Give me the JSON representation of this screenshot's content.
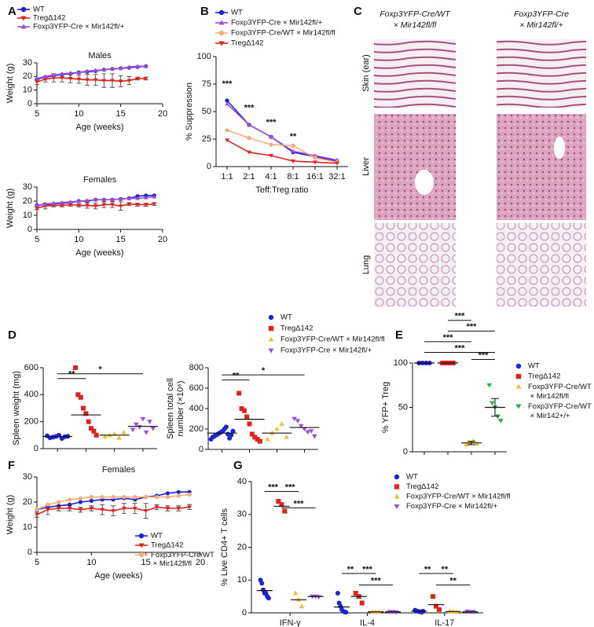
{
  "panels": [
    "A",
    "B",
    "C",
    "D",
    "E",
    "F",
    "G"
  ],
  "panel_c": {
    "columns": [
      [
        "Foxp3YFP-Cre/WT",
        "× Mir142fl/fl"
      ],
      [
        "Foxp3YFP-Cre",
        "× Mir142fl/+"
      ]
    ],
    "rows": [
      "Skin (ear)",
      "Liver",
      "Lung"
    ]
  },
  "chart_data": [
    {
      "type": "line",
      "title": "Males",
      "xlabel": "Age (weeks)",
      "ylabel": "Weight (g)",
      "x": [
        5,
        6,
        7,
        8,
        9,
        10,
        11,
        12,
        13,
        14,
        15,
        16,
        17,
        18
      ],
      "xlim": [
        5,
        20
      ],
      "xticks": [
        5,
        10,
        15,
        20
      ],
      "ylim": [
        0,
        30
      ],
      "yticks": [
        0,
        10,
        20,
        30
      ],
      "series": [
        {
          "name": "WT",
          "color": "#1c22d6",
          "marker": "circle",
          "values": [
            18,
            19.5,
            20.5,
            21.5,
            22,
            23,
            23.5,
            24,
            25,
            25.5,
            26,
            26.5,
            27,
            27.5
          ]
        },
        {
          "name": "TregΔ142",
          "color": "#e3211c",
          "marker": "triangle-down",
          "values": [
            16,
            18,
            19,
            19,
            18.5,
            18,
            17.5,
            17.5,
            17,
            17,
            16.5,
            17,
            18.5,
            18.5
          ],
          "errors": [
            2,
            2,
            3,
            3,
            3,
            3,
            4,
            4,
            5,
            5,
            4,
            3,
            1,
            1
          ]
        },
        {
          "name": "Foxp3YFP-Cre × Mir142fl/+",
          "color": "#9b4fd8",
          "marker": "triangle",
          "values": [
            18.5,
            20,
            21,
            22,
            22.5,
            23,
            24,
            24.5,
            25,
            25.5,
            26,
            27,
            27.5,
            27.5
          ]
        }
      ]
    },
    {
      "type": "line",
      "title": "Females",
      "xlabel": "Age (weeks)",
      "ylabel": "Weight (g)",
      "x": [
        5,
        6,
        7,
        8,
        9,
        10,
        11,
        12,
        13,
        14,
        15,
        16,
        17,
        18,
        19
      ],
      "xlim": [
        5,
        20
      ],
      "xticks": [
        5,
        10,
        15,
        20
      ],
      "ylim": [
        0,
        30
      ],
      "yticks": [
        0,
        10,
        20,
        30
      ],
      "series": [
        {
          "color": "#1c22d6",
          "marker": "circle",
          "values": [
            17,
            17.5,
            18,
            18.5,
            19,
            20,
            20,
            21,
            21,
            21,
            21.5,
            22,
            23.5,
            24,
            24
          ]
        },
        {
          "color": "#e3211c",
          "marker": "triangle-down",
          "values": [
            15,
            16.5,
            17,
            17,
            17.5,
            17,
            17,
            16.5,
            17.5,
            17.5,
            16.5,
            18,
            17.5,
            17.5,
            18
          ],
          "errors": [
            1,
            2,
            1,
            1,
            1,
            1,
            2,
            2,
            2,
            2,
            3,
            1,
            1,
            1,
            1
          ]
        },
        {
          "color": "#9b4fd8",
          "marker": "triangle",
          "values": [
            17,
            18,
            18.5,
            19,
            19.5,
            20,
            20.5,
            21,
            21,
            21,
            21.5,
            22,
            22,
            22.5,
            23
          ]
        }
      ]
    },
    {
      "type": "line",
      "xlabel": "Teff:Treg ratio",
      "ylabel": "% Suppression",
      "categories": [
        "1:1",
        "2:1",
        "4:1",
        "8:1",
        "16:1",
        "32:1"
      ],
      "ylim": [
        0,
        100
      ],
      "yticks": [
        0,
        25,
        50,
        75,
        100
      ],
      "series": [
        {
          "name": "WT",
          "color": "#1c22d6",
          "marker": "circle",
          "values": [
            60,
            38,
            27,
            13,
            9,
            5
          ]
        },
        {
          "name": "Foxp3YFP-Cre × Mir142fl/+",
          "color": "#9b4fd8",
          "marker": "triangle",
          "values": [
            57,
            38,
            27,
            14,
            10,
            6
          ]
        },
        {
          "name": "Foxp3YFP-Cre/WT × Mir142fl/fl",
          "color": "#f3ad7a",
          "marker": "circle",
          "values": [
            33,
            26,
            20,
            19,
            8,
            4
          ]
        },
        {
          "name": "TregΔ142",
          "color": "#e3211c",
          "marker": "triangle-down",
          "values": [
            24,
            13,
            10,
            5,
            4,
            3
          ]
        }
      ],
      "annotations": [
        {
          "text": "***",
          "x": 0,
          "y": 75
        },
        {
          "text": "***",
          "x": 1,
          "y": 53
        },
        {
          "text": "***",
          "x": 2,
          "y": 40
        },
        {
          "text": "**",
          "x": 3,
          "y": 27
        }
      ]
    },
    {
      "type": "dot",
      "ylabel": "Spleen weight (mg)",
      "ylim": [
        0,
        600
      ],
      "yticks": [
        0,
        200,
        400,
        600
      ],
      "series": [
        {
          "name": "WT",
          "color": "#1c22d6",
          "marker": "circle",
          "values": [
            95,
            80,
            85,
            90,
            100,
            75,
            88,
            92
          ],
          "mean": 90
        },
        {
          "name": "TregΔ142",
          "color": "#e3211c",
          "marker": "square",
          "values": [
            600,
            400,
            380,
            300,
            260,
            200,
            150,
            130,
            100
          ],
          "mean": 250
        },
        {
          "name": "Foxp3YFP-Cre/WT × Mir142fl/fl",
          "color": "#efc12f",
          "marker": "triangle",
          "values": [
            90,
            100,
            110,
            80,
            120
          ],
          "mean": 100
        },
        {
          "name": "Foxp3YFP-Cre × Mir142fl/+",
          "color": "#9b4fd8",
          "marker": "triangle-down",
          "values": [
            140,
            180,
            160,
            220,
            120,
            200,
            150
          ],
          "mean": 165
        }
      ],
      "brackets": [
        {
          "text": "**",
          "from": 0,
          "to": 1,
          "y": 520
        },
        {
          "text": "*",
          "from": 0,
          "to": 3,
          "y": 555
        }
      ]
    },
    {
      "type": "dot",
      "ylabel": [
        "Spleen total cell",
        "number (×10⁶)"
      ],
      "ylim": [
        0,
        800
      ],
      "yticks": [
        0,
        200,
        400,
        600,
        800
      ],
      "series": [
        {
          "color": "#1c22d6",
          "marker": "circle",
          "values": [
            100,
            120,
            130,
            140,
            150,
            160,
            170,
            180,
            200,
            220,
            150,
            110,
            140,
            180
          ],
          "mean": 160
        },
        {
          "color": "#e3211c",
          "marker": "square",
          "values": [
            550,
            400,
            380,
            320,
            250,
            150,
            120,
            100,
            80
          ],
          "mean": 295
        },
        {
          "color": "#efc12f",
          "marker": "triangle",
          "values": [
            100,
            160,
            200,
            250,
            120
          ],
          "mean": 160
        },
        {
          "color": "#9b4fd8",
          "marker": "triangle-down",
          "values": [
            300,
            280,
            230,
            200,
            170,
            180,
            130
          ],
          "mean": 215
        }
      ],
      "brackets": [
        {
          "text": "**",
          "from": 0,
          "to": 1,
          "y": 680
        },
        {
          "text": "*",
          "from": 0,
          "to": 3,
          "y": 730
        }
      ]
    },
    {
      "type": "dot",
      "ylabel": "% YFP+ Treg",
      "ylim": [
        0,
        100
      ],
      "yticks": [
        0,
        50,
        100
      ],
      "series": [
        {
          "name": "WT",
          "color": "#1c22d6",
          "marker": "circle",
          "values": [
            100,
            100,
            100,
            100
          ],
          "mean": 100
        },
        {
          "name": "TregΔ142",
          "color": "#e3211c",
          "marker": "square",
          "values": [
            100,
            100,
            100,
            100
          ],
          "mean": 100
        },
        {
          "name": "Foxp3YFP-Cre/WT × Mir142fl/fl",
          "color": "#efc12f",
          "marker": "triangle",
          "values": [
            8,
            10,
            12,
            9
          ],
          "mean": 10,
          "error": 2
        },
        {
          "name": "Foxp3YFP-Cre/WT × Mir142+/+",
          "color": "#1fb34a",
          "marker": "triangle-down",
          "values": [
            75,
            55,
            50,
            40,
            35
          ],
          "mean": 50,
          "error": 10
        }
      ],
      "brackets": [
        {
          "text": "***",
          "from": 1,
          "to": 2,
          "y": 148
        },
        {
          "text": "***",
          "from": 1,
          "to": 3,
          "y": 136
        },
        {
          "text": "***",
          "from": 0,
          "to": 2,
          "y": 124
        },
        {
          "text": "***",
          "from": 0,
          "to": 3,
          "y": 112
        },
        {
          "text": "***",
          "from": 2,
          "to": 3,
          "y": 104
        }
      ]
    },
    {
      "type": "line",
      "title": "Females",
      "xlabel": "Age (weeks)",
      "ylabel": "Weight (g)",
      "x": [
        5,
        6,
        7,
        8,
        9,
        10,
        11,
        12,
        13,
        14,
        15,
        16,
        17,
        18,
        19
      ],
      "xlim": [
        5,
        20
      ],
      "xticks": [
        5,
        10,
        15,
        20
      ],
      "ylim": [
        0,
        30
      ],
      "yticks": [
        0,
        10,
        20,
        30
      ],
      "series": [
        {
          "name": "WT",
          "color": "#1c22d6",
          "marker": "circle",
          "values": [
            17,
            18,
            18.5,
            19,
            20,
            20.5,
            21,
            21,
            21.5,
            21,
            22,
            22.5,
            23.5,
            24,
            24
          ]
        },
        {
          "name": "TregΔ142",
          "color": "#e3211c",
          "marker": "triangle-down",
          "values": [
            15,
            17,
            17.5,
            17.5,
            17,
            17.5,
            17,
            16.5,
            17.5,
            17.5,
            16.5,
            18,
            17.5,
            17.5,
            18
          ],
          "errors": [
            1,
            2,
            1,
            1,
            1,
            1,
            2,
            2,
            2,
            2,
            3,
            1,
            1,
            1,
            1
          ]
        },
        {
          "name": "Foxp3YFP-Cre/WT × Mir142fl/fl",
          "color": "#f3ad7a",
          "marker": "circle",
          "values": [
            17,
            19,
            20,
            21,
            21.5,
            22,
            22,
            22,
            22,
            22,
            22,
            22,
            22,
            22.5,
            23
          ]
        }
      ]
    },
    {
      "type": "dot",
      "ylabel": "% Live CD4+ T cells",
      "categories": [
        "IFN-γ",
        "IL-4",
        "IL-17"
      ],
      "ylim": [
        0,
        40
      ],
      "yticks": [
        0,
        10,
        20,
        30,
        40
      ],
      "series": [
        {
          "name": "WT",
          "color": "#1c22d6",
          "marker": "circle",
          "values": [
            [
              10,
              9,
              7,
              6,
              6,
              5,
              4.5
            ],
            [
              6,
              3,
              2,
              1,
              0.5,
              0.3,
              0.2
            ],
            [
              0.8,
              0.6,
              0.5,
              0.4,
              0.3,
              0.2,
              0.5
            ]
          ],
          "means": [
            6.8,
            1.8,
            0.5
          ]
        },
        {
          "name": "TregΔ142",
          "color": "#e3211c",
          "marker": "square",
          "values": [
            [
              34,
              33,
              31
            ],
            [
              6,
              5,
              3
            ],
            [
              5,
              2,
              1
            ]
          ],
          "means": [
            32.5,
            5,
            2.5
          ]
        },
        {
          "name": "Foxp3YFP-Cre/WT × Mir142fl/fl",
          "color": "#efc12f",
          "marker": "triangle",
          "values": [
            [
              6,
              4,
              2
            ],
            [
              0.3,
              0.3,
              0.3
            ],
            [
              0.5,
              0.4,
              0.3
            ]
          ],
          "means": [
            4,
            0.3,
            0.4
          ]
        },
        {
          "name": "Foxp3YFP-Cre × Mir142fl/+",
          "color": "#9b4fd8",
          "marker": "triangle-down",
          "values": [
            [
              5,
              5,
              4.8
            ],
            [
              0.3,
              0.3,
              0.2
            ],
            [
              0.4,
              0.3,
              0.3
            ]
          ],
          "means": [
            5,
            0.3,
            0.3
          ]
        }
      ],
      "brackets": [
        {
          "text": "***",
          "from": [
            0,
            0
          ],
          "to": [
            0,
            1
          ],
          "y": 37
        },
        {
          "text": "***",
          "from": [
            0,
            1
          ],
          "to": [
            0,
            2
          ],
          "y": 37
        },
        {
          "text": "***",
          "from": [
            0,
            1
          ],
          "to": [
            0,
            3
          ],
          "y": 32
        },
        {
          "text": "**",
          "from": [
            1,
            0
          ],
          "to": [
            1,
            1
          ],
          "y": 12
        },
        {
          "text": "***",
          "from": [
            1,
            1
          ],
          "to": [
            1,
            2
          ],
          "y": 12
        },
        {
          "text": "***",
          "from": [
            1,
            1
          ],
          "to": [
            1,
            3
          ],
          "y": 8.5
        },
        {
          "text": "**",
          "from": [
            2,
            0
          ],
          "to": [
            2,
            1
          ],
          "y": 12
        },
        {
          "text": "**",
          "from": [
            2,
            1
          ],
          "to": [
            2,
            2
          ],
          "y": 12
        },
        {
          "text": "**",
          "from": [
            2,
            1
          ],
          "to": [
            2,
            3
          ],
          "y": 8.5
        }
      ]
    }
  ]
}
